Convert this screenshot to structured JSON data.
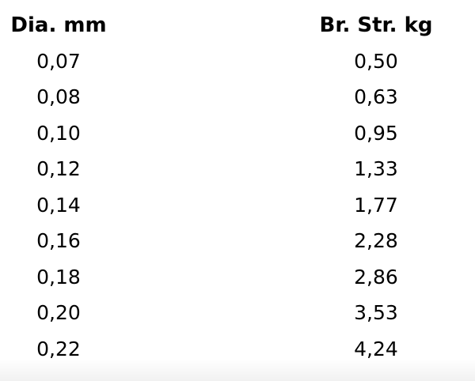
{
  "table": {
    "headers": [
      "Dia. mm",
      "Br. Str. kg"
    ],
    "rows": [
      [
        "0,07",
        "0,50"
      ],
      [
        "0,08",
        "0,63"
      ],
      [
        "0,10",
        "0,95"
      ],
      [
        "0,12",
        "1,33"
      ],
      [
        "0,14",
        "1,77"
      ],
      [
        "0,16",
        "2,28"
      ],
      [
        "0,18",
        "2,86"
      ],
      [
        "0,20",
        "3,53"
      ],
      [
        "0,22",
        "4,24"
      ]
    ]
  },
  "chart_data": {
    "type": "table",
    "columns": [
      "Dia. mm",
      "Br. Str. kg"
    ],
    "rows": [
      [
        0.07,
        0.5
      ],
      [
        0.08,
        0.63
      ],
      [
        0.1,
        0.95
      ],
      [
        0.12,
        1.33
      ],
      [
        0.14,
        1.77
      ],
      [
        0.16,
        2.28
      ],
      [
        0.18,
        2.86
      ],
      [
        0.2,
        3.53
      ],
      [
        0.22,
        4.24
      ]
    ],
    "note_decimal_separator": "comma"
  },
  "colors": {
    "text": "#000000",
    "background": "#ffffff",
    "bottom_fade_edge": "#f1f1f1"
  }
}
